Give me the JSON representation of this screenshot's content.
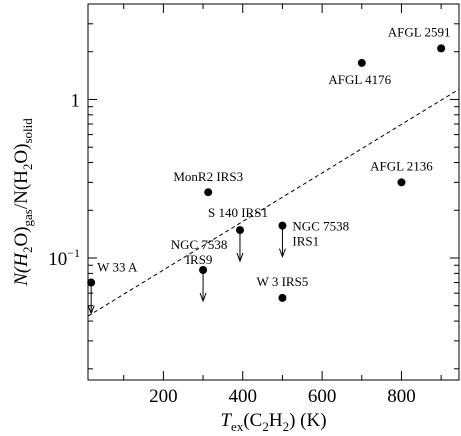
{
  "chart_data": {
    "type": "scatter",
    "xlabel_parts": [
      "T",
      "ex",
      "(C",
      "2",
      "H",
      "2",
      ") (K)"
    ],
    "ylabel_parts": [
      "N(H",
      "2",
      "O)",
      "gas",
      "/N(H",
      "2",
      "O)",
      "solid"
    ],
    "x": [
      18,
      313,
      393,
      500,
      300,
      500,
      800,
      700,
      900
    ],
    "values": [
      0.07,
      0.26,
      0.15,
      0.16,
      0.084,
      0.056,
      0.3,
      1.7,
      2.1
    ],
    "labels": [
      [
        "W 33 A"
      ],
      [
        "MonR2 IRS3"
      ],
      [
        "S 140 IRS1"
      ],
      [
        "NGC 7538",
        "IRS1"
      ],
      [
        "NGC 7538",
        "IRS9"
      ],
      [
        "W 3 IRS5"
      ],
      [
        "AFGL 2136"
      ],
      [
        "AFGL 4176"
      ],
      [
        "AFGL 2591"
      ]
    ],
    "upper_limit": [
      true,
      false,
      true,
      true,
      true,
      false,
      false,
      false,
      false
    ],
    "color": "#000000",
    "fit_line": {
      "x": [
        10,
        945
      ],
      "values": [
        0.043,
        1.16
      ],
      "dash": true
    },
    "xlim": [
      10,
      945
    ],
    "ylim": [
      0.017,
      4
    ],
    "ylog": true,
    "xticks": [
      200,
      400,
      600,
      800
    ],
    "xminor": [
      100,
      300,
      500,
      700,
      900
    ],
    "yticks": [
      {
        "value": 0.1,
        "label": "10",
        "exponent": "−1"
      },
      1
    ],
    "yminor": [
      0.02,
      0.03,
      0.04,
      0.05,
      0.06,
      0.07,
      0.08,
      0.09,
      0.2,
      0.3,
      0.4,
      0.5,
      0.6,
      0.7,
      0.8,
      0.9,
      2,
      3,
      4
    ]
  }
}
